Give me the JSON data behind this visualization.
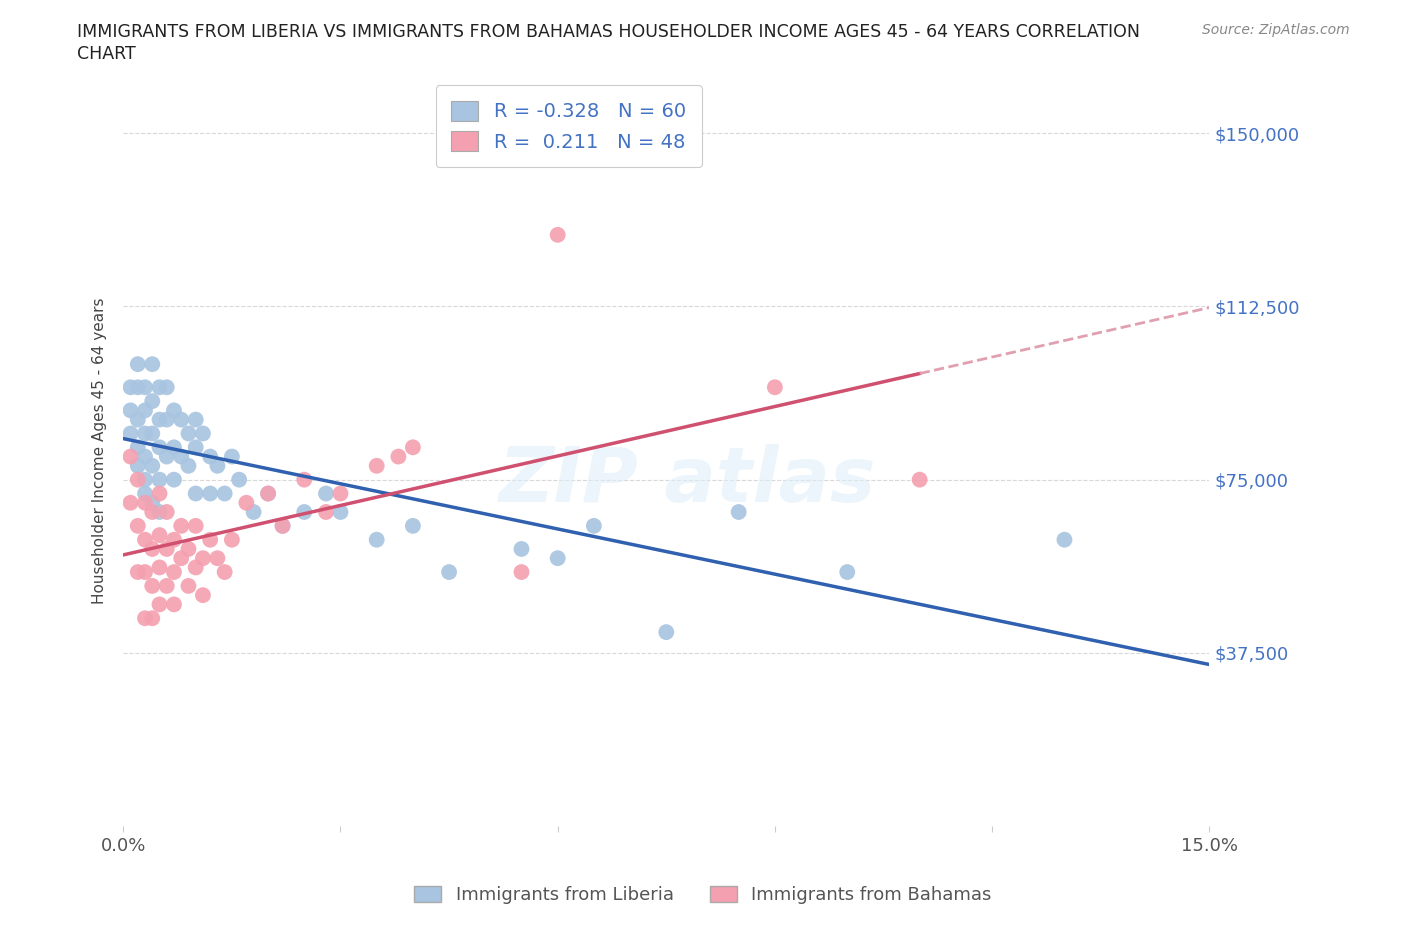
{
  "title_line1": "IMMIGRANTS FROM LIBERIA VS IMMIGRANTS FROM BAHAMAS HOUSEHOLDER INCOME AGES 45 - 64 YEARS CORRELATION",
  "title_line2": "CHART",
  "source": "Source: ZipAtlas.com",
  "ylabel": "Householder Income Ages 45 - 64 years",
  "xlim": [
    0.0,
    0.15
  ],
  "ylim": [
    0,
    162500
  ],
  "ytick_values": [
    0,
    37500,
    75000,
    112500,
    150000
  ],
  "ytick_labels": [
    "",
    "$37,500",
    "$75,000",
    "$112,500",
    "$150,000"
  ],
  "liberia_color": "#a8c4e0",
  "bahamas_color": "#f4a0b0",
  "liberia_line_color": "#3060b0",
  "bahamas_line_color": "#d05070",
  "bahamas_dash_color": "#e0a0b0",
  "R_liberia": -0.328,
  "N_liberia": 60,
  "R_bahamas": 0.211,
  "N_bahamas": 48,
  "legend_liberia": "Immigrants from Liberia",
  "legend_bahamas": "Immigrants from Bahamas",
  "liberia_x": [
    0.001,
    0.001,
    0.001,
    0.002,
    0.002,
    0.002,
    0.002,
    0.002,
    0.003,
    0.003,
    0.003,
    0.003,
    0.003,
    0.003,
    0.004,
    0.004,
    0.004,
    0.004,
    0.004,
    0.005,
    0.005,
    0.005,
    0.005,
    0.005,
    0.006,
    0.006,
    0.006,
    0.007,
    0.007,
    0.007,
    0.008,
    0.008,
    0.009,
    0.009,
    0.01,
    0.01,
    0.01,
    0.011,
    0.012,
    0.012,
    0.013,
    0.014,
    0.015,
    0.016,
    0.018,
    0.02,
    0.022,
    0.025,
    0.028,
    0.03,
    0.035,
    0.04,
    0.045,
    0.055,
    0.06,
    0.065,
    0.075,
    0.085,
    0.1,
    0.13
  ],
  "liberia_y": [
    95000,
    90000,
    85000,
    100000,
    95000,
    88000,
    82000,
    78000,
    95000,
    90000,
    85000,
    80000,
    75000,
    72000,
    100000,
    92000,
    85000,
    78000,
    70000,
    95000,
    88000,
    82000,
    75000,
    68000,
    95000,
    88000,
    80000,
    90000,
    82000,
    75000,
    88000,
    80000,
    85000,
    78000,
    88000,
    82000,
    72000,
    85000,
    80000,
    72000,
    78000,
    72000,
    80000,
    75000,
    68000,
    72000,
    65000,
    68000,
    72000,
    68000,
    62000,
    65000,
    55000,
    60000,
    58000,
    65000,
    42000,
    68000,
    55000,
    62000
  ],
  "bahamas_x": [
    0.001,
    0.001,
    0.002,
    0.002,
    0.002,
    0.003,
    0.003,
    0.003,
    0.003,
    0.004,
    0.004,
    0.004,
    0.004,
    0.005,
    0.005,
    0.005,
    0.005,
    0.006,
    0.006,
    0.006,
    0.007,
    0.007,
    0.007,
    0.008,
    0.008,
    0.009,
    0.009,
    0.01,
    0.01,
    0.011,
    0.011,
    0.012,
    0.013,
    0.014,
    0.015,
    0.017,
    0.02,
    0.022,
    0.025,
    0.028,
    0.03,
    0.035,
    0.038,
    0.04,
    0.055,
    0.06,
    0.09,
    0.11
  ],
  "bahamas_y": [
    80000,
    70000,
    75000,
    65000,
    55000,
    70000,
    62000,
    55000,
    45000,
    68000,
    60000,
    52000,
    45000,
    72000,
    63000,
    56000,
    48000,
    68000,
    60000,
    52000,
    62000,
    55000,
    48000,
    65000,
    58000,
    60000,
    52000,
    65000,
    56000,
    58000,
    50000,
    62000,
    58000,
    55000,
    62000,
    70000,
    72000,
    65000,
    75000,
    68000,
    72000,
    78000,
    80000,
    82000,
    55000,
    128000,
    95000,
    75000
  ]
}
